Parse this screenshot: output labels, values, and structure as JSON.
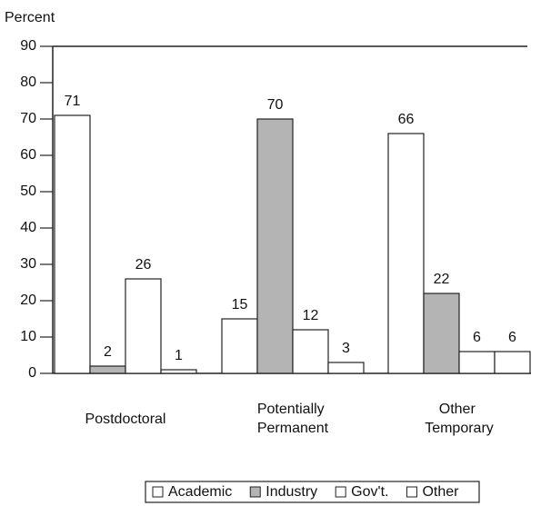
{
  "chart_data": {
    "type": "bar",
    "y_label": "Percent",
    "categories": [
      "Postdoctoral",
      "Potentially Permanent",
      "Other Temporary"
    ],
    "series": [
      {
        "name": "Academic",
        "color": "#ffffff",
        "values": [
          71,
          15,
          66
        ]
      },
      {
        "name": "Industry",
        "color": "#b4b4b4",
        "values": [
          2,
          70,
          22
        ]
      },
      {
        "name": "Gov't.",
        "color": "#ffffff",
        "values": [
          26,
          12,
          6
        ]
      },
      {
        "name": "Other",
        "color": "#ffffff",
        "values": [
          1,
          3,
          6
        ]
      }
    ],
    "ylim": [
      0,
      90
    ],
    "yticks": [
      0,
      10,
      20,
      30,
      40,
      50,
      60,
      70,
      80,
      90
    ],
    "legend": "bottom"
  }
}
